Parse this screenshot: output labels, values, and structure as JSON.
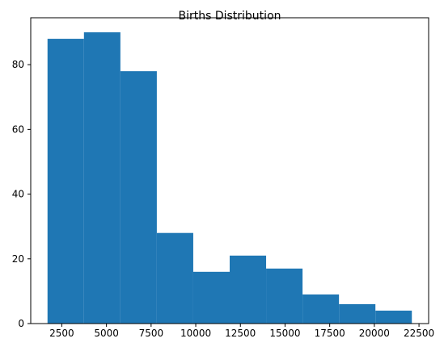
{
  "chart_data": {
    "type": "bar",
    "title": "Births Distribution",
    "xlabel": "",
    "ylabel": "",
    "bin_edges": [
      1700,
      3740,
      5780,
      7820,
      9860,
      11900,
      13940,
      15980,
      18020,
      20060,
      22100
    ],
    "values": [
      88,
      90,
      78,
      28,
      16,
      21,
      17,
      9,
      6,
      4
    ],
    "xlim": [
      760,
      23040
    ],
    "ylim": [
      0,
      94.5
    ],
    "x_ticks": [
      2500,
      5000,
      7500,
      10000,
      12500,
      15000,
      17500,
      20000,
      22500
    ],
    "y_ticks": [
      0,
      20,
      40,
      60,
      80
    ],
    "grid": false,
    "color": "#1f77b4"
  }
}
